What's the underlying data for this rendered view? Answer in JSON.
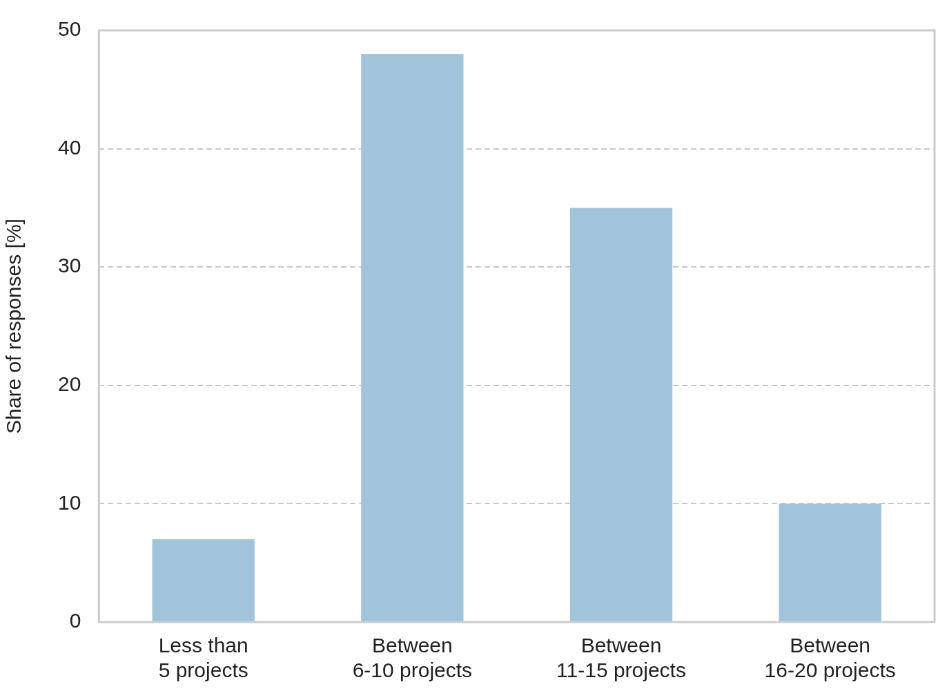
{
  "chart_data": {
    "type": "bar",
    "ylabel": "Share of responses [%]",
    "categories": [
      "Less than\n5 projects",
      "Between\n6-10 projects",
      "Between\n11-15 projects",
      "Between\n16-20 projects"
    ],
    "values": [
      7,
      48,
      35,
      10
    ],
    "color": "#a1c4da",
    "ylim": [
      0,
      50
    ],
    "yticks": [
      0,
      10,
      20,
      30,
      40,
      50
    ],
    "grid": "y"
  }
}
